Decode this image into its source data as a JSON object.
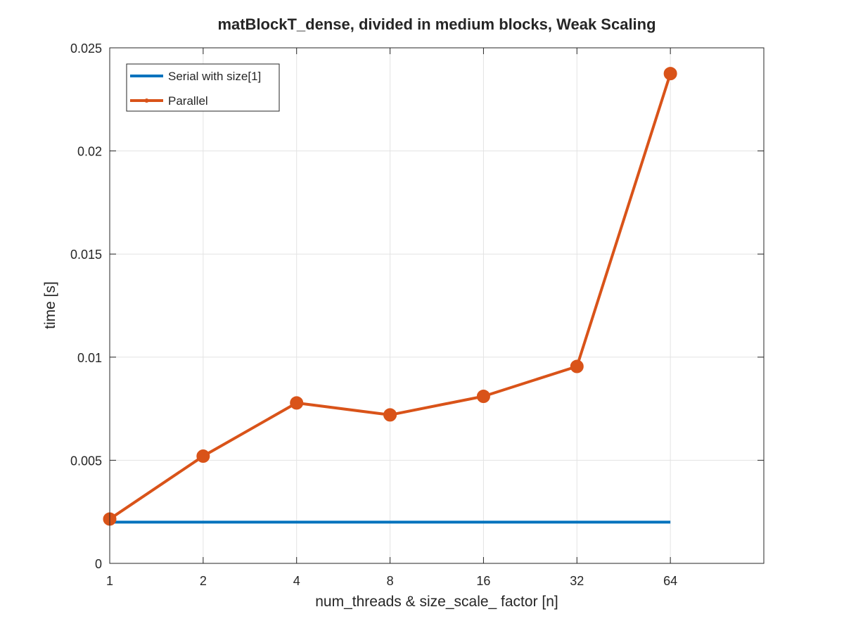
{
  "chart_data": {
    "type": "line",
    "title": "matBlockT_dense, divided in medium blocks, Weak Scaling",
    "xlabel": "num_threads & size_scale_ factor [n]",
    "ylabel": "time [s]",
    "x_scale": "log2",
    "x_ticks": [
      1,
      2,
      4,
      8,
      16,
      32,
      64
    ],
    "x_tick_labels": [
      "1",
      "2",
      "4",
      "8",
      "16",
      "32",
      "64"
    ],
    "xlim": [
      1,
      128
    ],
    "ylim": [
      0,
      0.025
    ],
    "y_ticks": [
      0,
      0.005,
      0.01,
      0.015,
      0.02,
      0.025
    ],
    "y_tick_labels": [
      "0",
      "0.005",
      "0.01",
      "0.015",
      "0.02",
      "0.025"
    ],
    "grid": true,
    "legend_position": "top-left",
    "series": [
      {
        "name": "Serial with size[1]",
        "color": "#0072bd",
        "markers": false,
        "x": [
          1,
          2,
          4,
          8,
          16,
          32,
          64
        ],
        "values": [
          0.002,
          0.002,
          0.002,
          0.002,
          0.002,
          0.002,
          0.002
        ]
      },
      {
        "name": "Parallel",
        "color": "#d95319",
        "markers": true,
        "x": [
          1,
          2,
          4,
          8,
          16,
          32,
          64
        ],
        "values": [
          0.00215,
          0.0052,
          0.00778,
          0.0072,
          0.0081,
          0.00955,
          0.02375
        ]
      }
    ]
  }
}
